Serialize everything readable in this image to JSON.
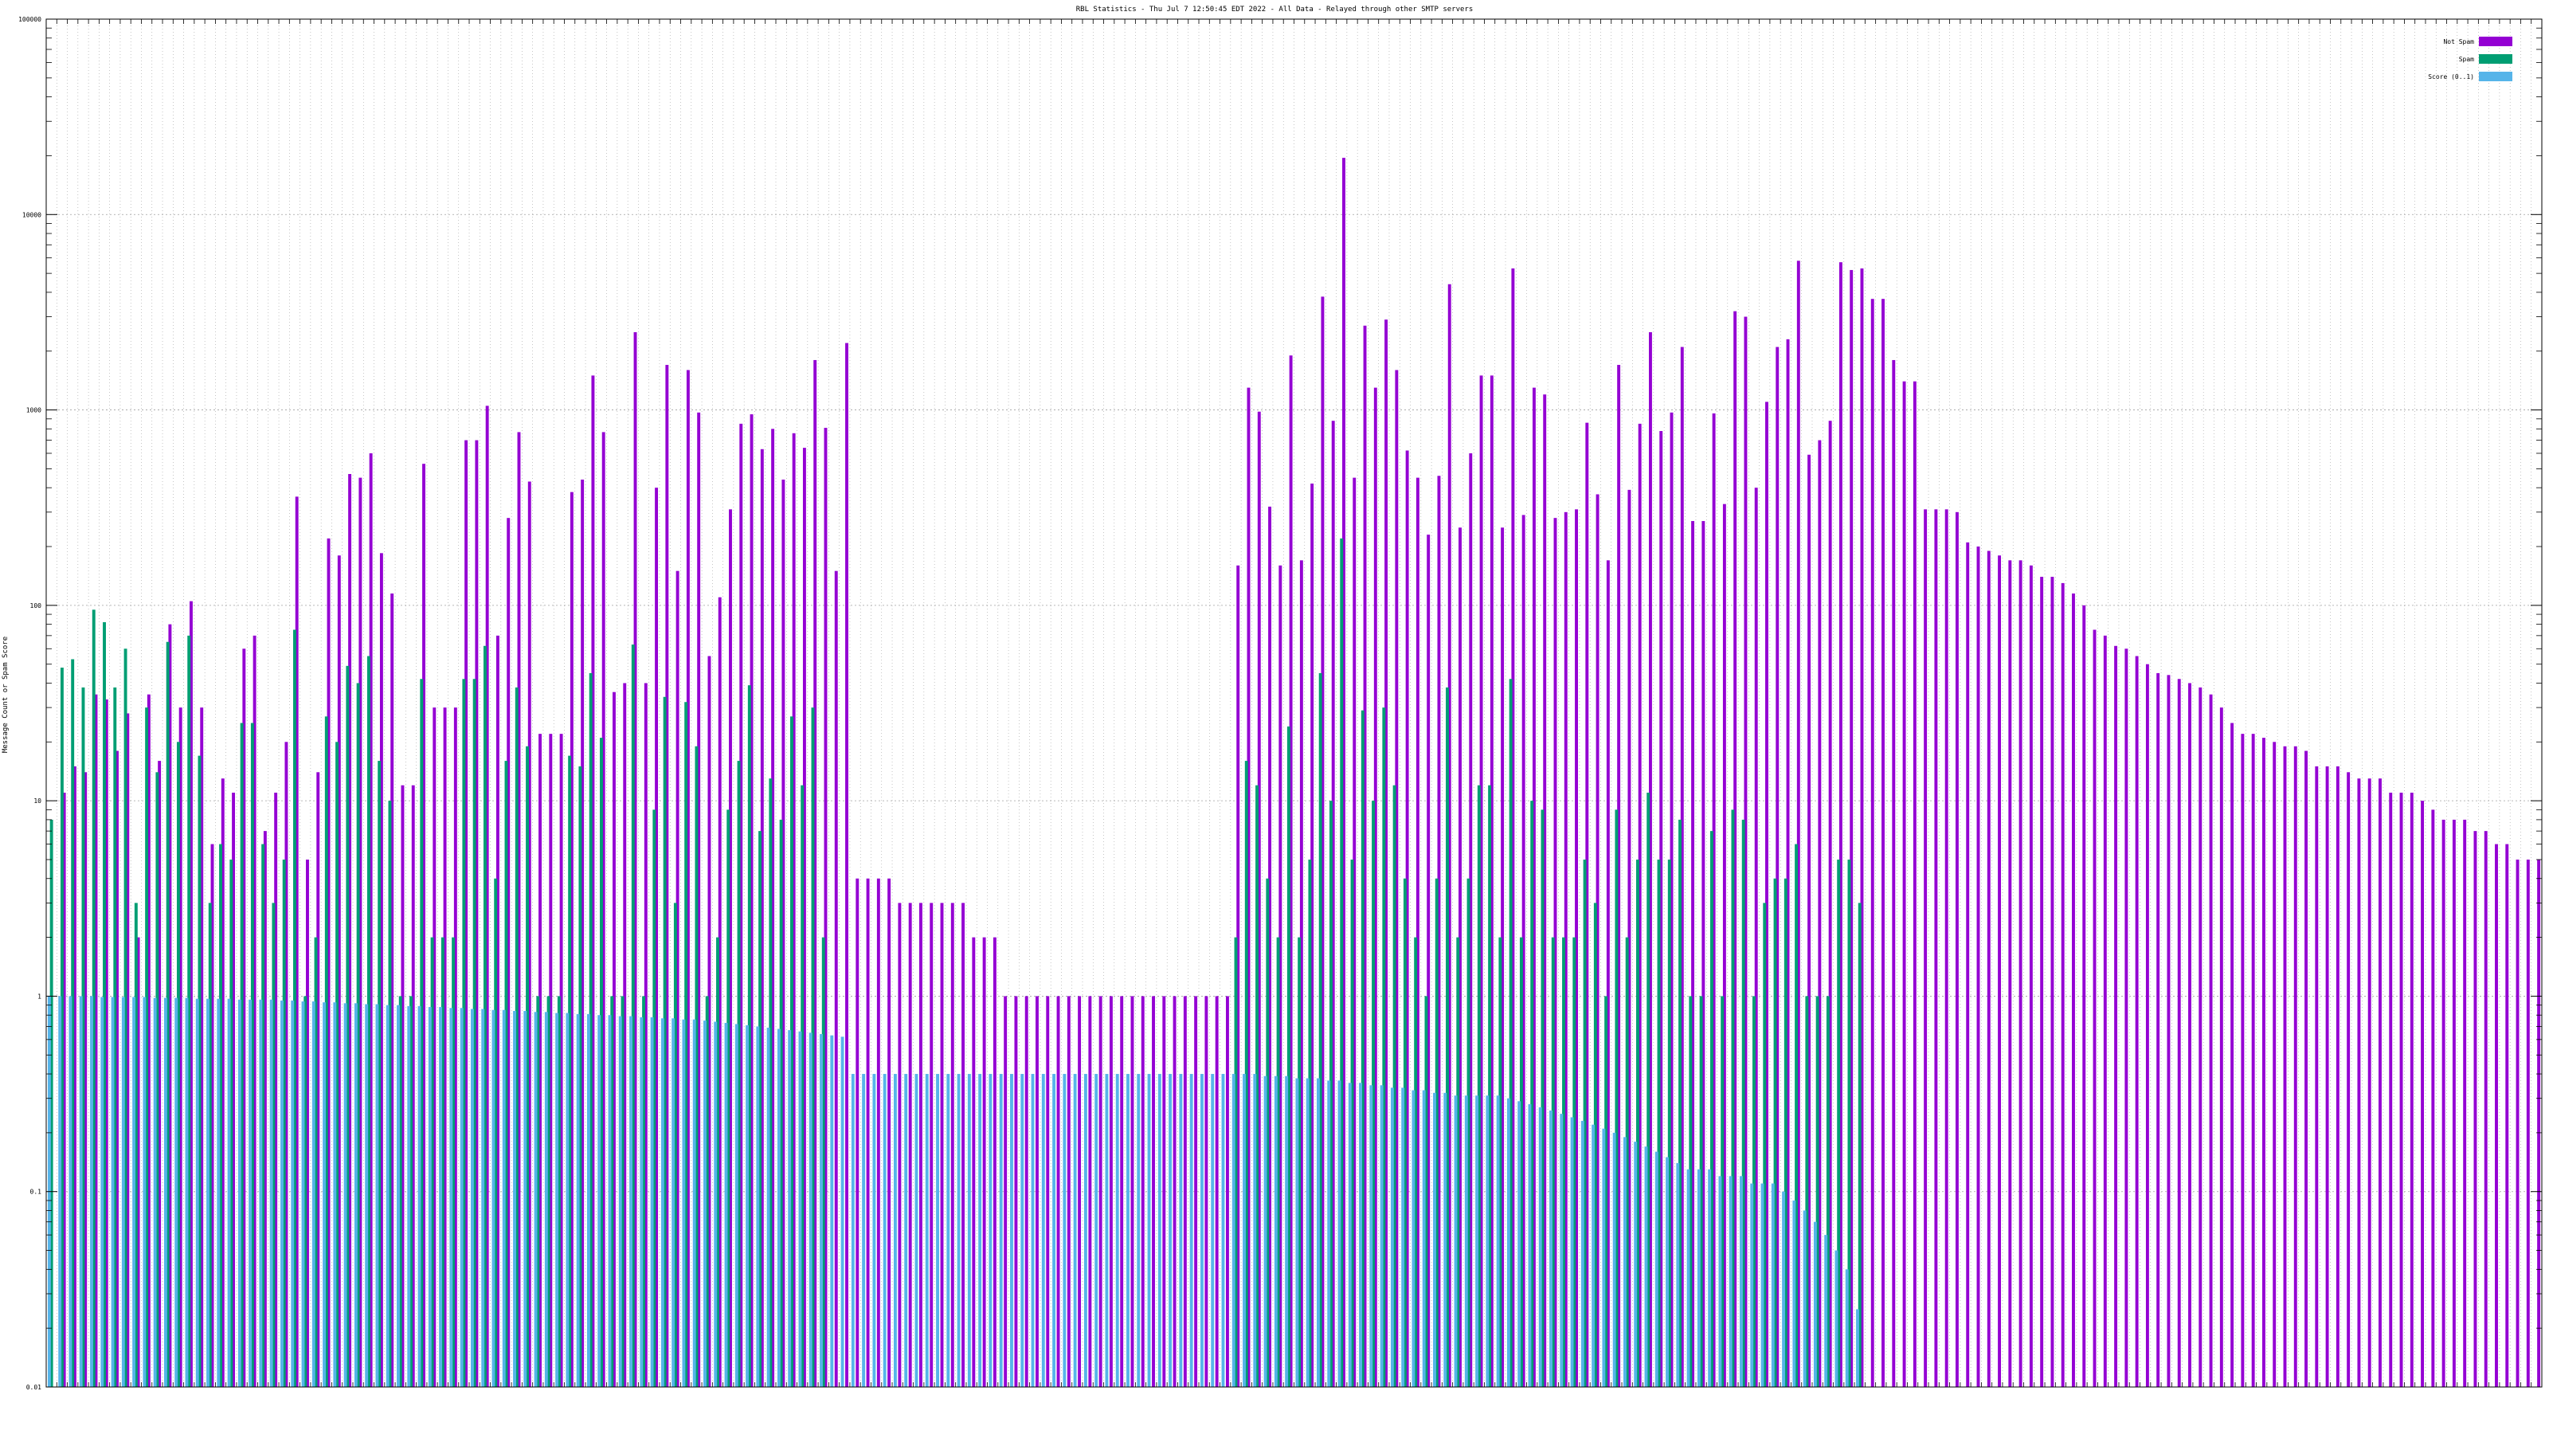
{
  "chart_data": {
    "type": "bar",
    "title": "RBL Statistics - Thu Jul  7 12:50:45 EDT 2022 - All Data - Relayed through other SMTP servers",
    "xlabel": "",
    "ylabel": "Message Count or Spam Score",
    "y_scale": "log",
    "ylim": [
      0.01,
      100000
    ],
    "y_ticks": [
      0.01,
      0.1,
      1,
      10,
      100,
      1000,
      10000,
      100000
    ],
    "y_tick_labels": [
      "0.01",
      "0.1",
      "1",
      "10",
      "100",
      "1000",
      "10000",
      "100000"
    ],
    "grid": true,
    "legend_position": "top-right",
    "colors": {
      "not_spam": "#9400d3",
      "spam": "#009e73",
      "score": "#56b4e9",
      "grid": "#a0a0a0"
    },
    "series": [
      {
        "name": "Not Spam",
        "color": "#9400d3",
        "values": [
          0,
          11,
          15,
          14,
          35,
          33,
          18,
          28,
          2,
          35,
          16,
          80,
          30,
          105,
          30,
          6,
          13,
          11,
          60,
          70,
          7,
          11,
          20,
          360,
          5,
          14,
          220,
          180,
          470,
          450,
          600,
          185,
          115,
          12,
          12,
          530,
          30,
          30,
          30,
          700,
          700,
          1050,
          70,
          280,
          770,
          430,
          22,
          22,
          22,
          380,
          440,
          1500,
          770,
          36,
          40,
          2500,
          40,
          400,
          1700,
          150,
          1600,
          970,
          55,
          110,
          310,
          850,
          950,
          630,
          800,
          440,
          760,
          640,
          1800,
          810,
          150,
          2200,
          4,
          4,
          4,
          4,
          3,
          3,
          3,
          3,
          3,
          3,
          3,
          2,
          2,
          2,
          1,
          1,
          1,
          1,
          1,
          1,
          1,
          1,
          1,
          1,
          1,
          1,
          1,
          1,
          1,
          1,
          1,
          1,
          1,
          1,
          1,
          1,
          160,
          1300,
          980,
          320,
          160,
          1900,
          170,
          420,
          3800,
          880,
          19500,
          450,
          2700,
          1300,
          2900,
          1600,
          620,
          450,
          230,
          460,
          4400,
          250,
          600,
          1500,
          1500,
          250,
          5300,
          290,
          1300,
          1200,
          280,
          300,
          310,
          860,
          370,
          170,
          1700,
          390,
          850,
          2500,
          780,
          970,
          2100,
          270,
          270,
          960,
          330,
          3200,
          3000,
          400,
          1100,
          2100,
          2300,
          5800,
          590,
          700,
          880,
          5700,
          5200,
          5300,
          3700,
          3700,
          1800,
          1400,
          1400,
          310,
          310,
          310,
          300,
          210,
          200,
          190,
          180,
          170,
          170,
          160,
          140,
          140,
          130,
          115,
          100,
          75,
          70,
          62,
          60,
          55,
          50,
          45,
          44,
          42,
          40,
          38,
          35,
          30,
          25,
          22,
          22,
          21,
          20,
          19,
          19,
          18,
          15,
          15,
          15,
          14,
          13,
          13,
          13,
          11,
          11,
          11,
          10,
          9,
          8,
          8,
          8,
          7,
          7,
          6,
          6,
          5,
          5,
          5
        ]
      },
      {
        "name": "Spam",
        "color": "#009e73",
        "values": [
          8,
          48,
          53,
          38,
          95,
          82,
          38,
          60,
          3,
          30,
          14,
          65,
          20,
          70,
          17,
          3,
          6,
          5,
          25,
          25,
          6,
          3,
          5,
          75,
          1,
          2,
          27,
          20,
          49,
          40,
          55,
          16,
          10,
          1,
          1,
          42,
          2,
          2,
          2,
          42,
          42,
          62,
          4,
          16,
          38,
          19,
          1,
          1,
          1,
          17,
          15,
          45,
          21,
          1,
          1,
          63,
          1,
          9,
          34,
          3,
          32,
          19,
          1,
          2,
          9,
          16,
          39,
          7,
          13,
          8,
          27,
          12,
          30,
          2,
          0,
          0,
          0,
          0,
          0,
          0,
          0,
          0,
          0,
          0,
          0,
          0,
          0,
          0,
          0,
          0,
          0,
          0,
          0,
          0,
          0,
          0,
          0,
          0,
          0,
          0,
          0,
          0,
          0,
          0,
          0,
          0,
          0,
          0,
          0,
          0,
          0,
          0,
          2,
          16,
          12,
          4,
          2,
          24,
          2,
          5,
          45,
          10,
          220,
          5,
          29,
          10,
          30,
          12,
          4,
          2,
          1,
          4,
          38,
          2,
          4,
          12,
          12,
          2,
          42,
          2,
          10,
          9,
          2,
          2,
          2,
          5,
          3,
          1,
          9,
          2,
          5,
          11,
          5,
          5,
          8,
          1,
          1,
          7,
          1,
          9,
          8,
          1,
          3,
          4,
          4,
          6,
          1,
          1,
          1,
          5,
          5,
          3,
          0,
          0,
          0,
          0,
          0,
          0,
          0,
          0,
          0,
          0,
          0,
          0,
          0,
          0,
          0,
          0,
          0,
          0,
          0,
          0,
          0,
          0,
          0,
          0,
          0,
          0,
          0,
          0,
          0,
          0,
          0,
          0,
          0,
          0,
          0,
          0,
          0,
          0,
          0,
          0,
          0,
          0,
          0,
          0,
          0,
          0,
          0,
          0,
          0,
          0,
          0,
          0,
          0,
          0,
          0,
          0,
          0,
          0,
          0,
          0,
          0,
          0,
          0,
          0
        ]
      },
      {
        "name": "Score (0..1)",
        "color": "#56b4e9",
        "values": [
          1.0,
          1.0,
          1.0,
          1.0,
          1.0,
          0.99,
          0.99,
          0.99,
          0.99,
          0.99,
          0.98,
          0.98,
          0.98,
          0.98,
          0.97,
          0.97,
          0.97,
          0.97,
          0.96,
          0.96,
          0.96,
          0.96,
          0.95,
          0.95,
          0.94,
          0.94,
          0.93,
          0.93,
          0.92,
          0.92,
          0.91,
          0.91,
          0.9,
          0.9,
          0.89,
          0.89,
          0.88,
          0.88,
          0.87,
          0.87,
          0.86,
          0.86,
          0.85,
          0.85,
          0.84,
          0.84,
          0.83,
          0.83,
          0.82,
          0.82,
          0.81,
          0.81,
          0.8,
          0.8,
          0.79,
          0.79,
          0.78,
          0.78,
          0.77,
          0.77,
          0.76,
          0.76,
          0.75,
          0.74,
          0.73,
          0.72,
          0.71,
          0.7,
          0.69,
          0.68,
          0.67,
          0.66,
          0.65,
          0.64,
          0.63,
          0.62,
          0.4,
          0.4,
          0.4,
          0.4,
          0.4,
          0.4,
          0.4,
          0.4,
          0.4,
          0.4,
          0.4,
          0.4,
          0.4,
          0.4,
          0.4,
          0.4,
          0.4,
          0.4,
          0.4,
          0.4,
          0.4,
          0.4,
          0.4,
          0.4,
          0.4,
          0.4,
          0.4,
          0.4,
          0.4,
          0.4,
          0.4,
          0.4,
          0.4,
          0.4,
          0.4,
          0.4,
          0.4,
          0.4,
          0.4,
          0.39,
          0.39,
          0.39,
          0.38,
          0.38,
          0.38,
          0.37,
          0.37,
          0.36,
          0.36,
          0.35,
          0.35,
          0.34,
          0.34,
          0.33,
          0.33,
          0.32,
          0.32,
          0.31,
          0.31,
          0.31,
          0.31,
          0.31,
          0.3,
          0.29,
          0.28,
          0.27,
          0.26,
          0.25,
          0.24,
          0.23,
          0.22,
          0.21,
          0.2,
          0.19,
          0.18,
          0.17,
          0.16,
          0.15,
          0.14,
          0.13,
          0.13,
          0.13,
          0.12,
          0.12,
          0.12,
          0.11,
          0.11,
          0.11,
          0.1,
          0.09,
          0.08,
          0.07,
          0.06,
          0.05,
          0.04,
          0.025,
          0,
          0,
          0,
          0,
          0,
          0,
          0,
          0,
          0,
          0,
          0,
          0,
          0,
          0,
          0,
          0,
          0,
          0,
          0,
          0,
          0,
          0,
          0,
          0,
          0,
          0,
          0,
          0,
          0,
          0,
          0,
          0,
          0,
          0,
          0,
          0,
          0,
          0,
          0,
          0,
          0,
          0,
          0,
          0,
          0,
          0,
          0,
          0,
          0,
          0,
          0,
          0,
          0,
          0,
          0,
          0,
          0,
          0,
          0,
          0,
          0,
          0,
          0,
          0
        ]
      }
    ]
  }
}
